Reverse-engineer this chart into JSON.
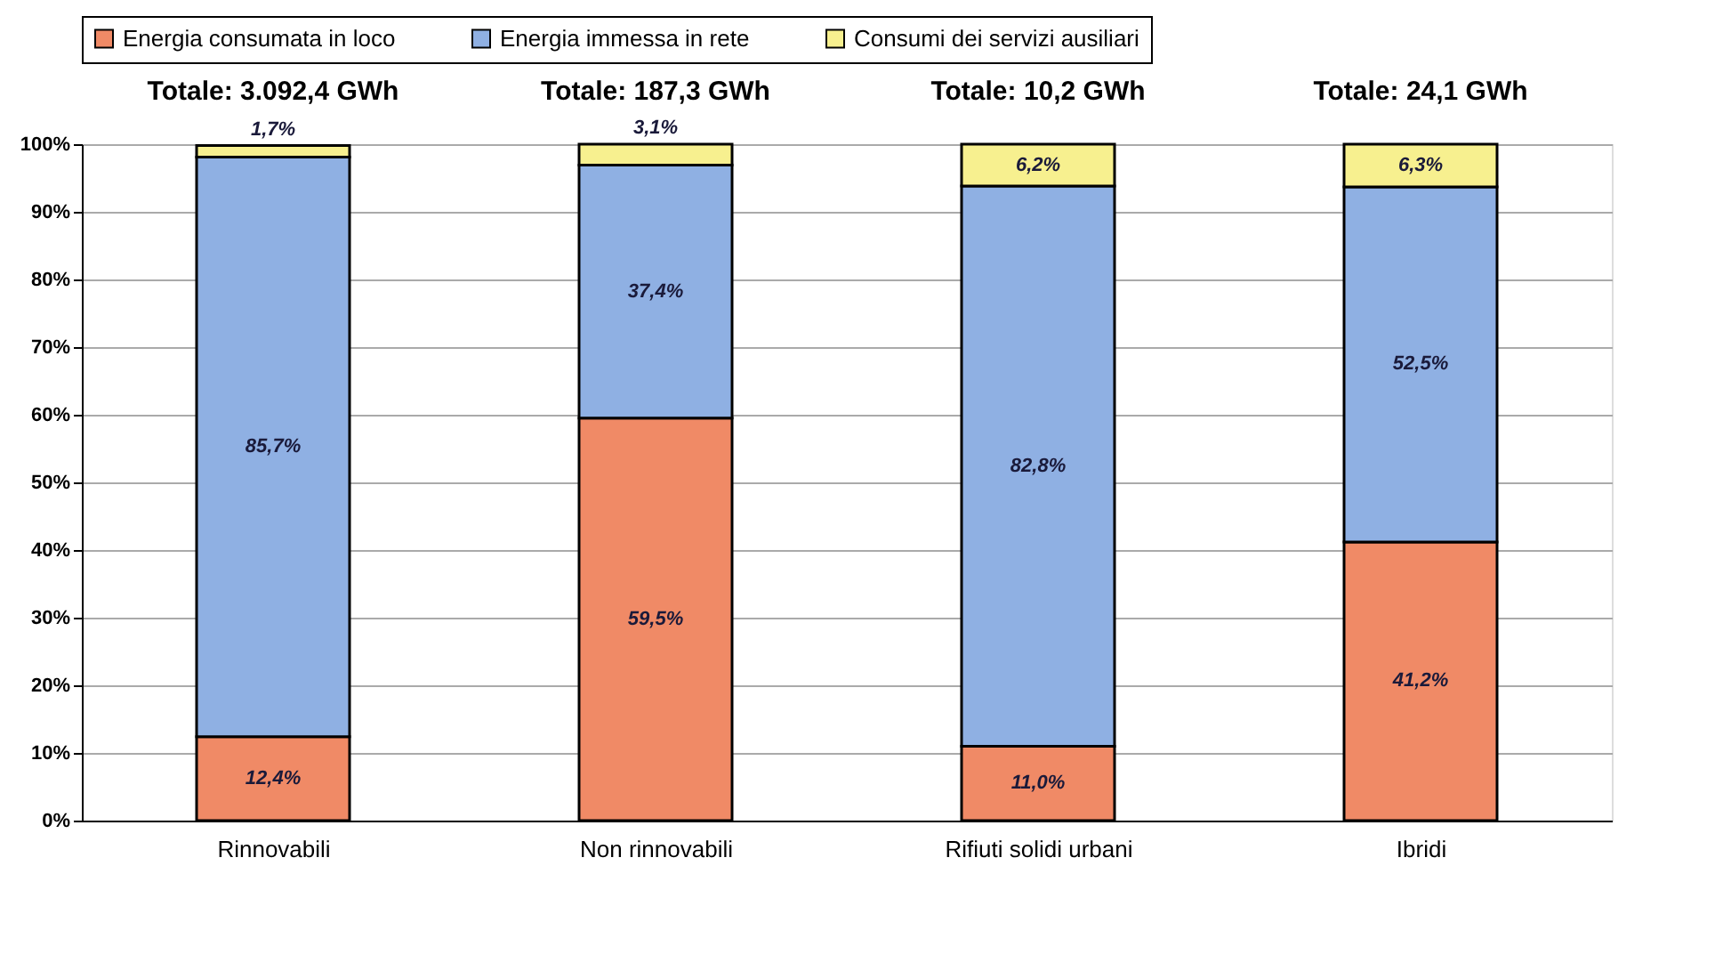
{
  "chart_data": {
    "type": "bar",
    "stacked": true,
    "categories": [
      "Rinnovabili",
      "Non rinnovabili",
      "Rifiuti solidi urbani",
      "Ibridi"
    ],
    "series": [
      {
        "name": "Energia consumata in loco",
        "color": "#f08a66",
        "values": [
          12.4,
          59.5,
          11.0,
          41.2
        ],
        "value_labels": [
          "12,4%",
          "59,5%",
          "11,0%",
          "41,2%"
        ]
      },
      {
        "name": "Energia immessa in rete",
        "color": "#8fb0e3",
        "values": [
          85.7,
          37.4,
          82.8,
          52.5
        ],
        "value_labels": [
          "85,7%",
          "37,4%",
          "82,8%",
          "52,5%"
        ]
      },
      {
        "name": "Consumi dei servizi ausiliari",
        "color": "#f7f08f",
        "values": [
          1.7,
          3.1,
          6.2,
          6.3
        ],
        "value_labels": [
          "1,7%",
          "3,1%",
          "6,2%",
          "6,3%"
        ]
      }
    ],
    "annotations": [
      {
        "text": "Totale: 3.092,4 GWh",
        "x": "Rinnovabili",
        "y": 100
      },
      {
        "text": "Totale: 187,3 GWh",
        "x": "Non rinnovabili",
        "y": 100
      },
      {
        "text": "Totale: 10,2 GWh",
        "x": "Rifiuti solidi urbani",
        "y": 100
      },
      {
        "text": "Totale: 24,1 GWh",
        "x": "Ibridi",
        "y": 100
      }
    ],
    "ylim": [
      0,
      100
    ],
    "yticks": [
      {
        "value": 0,
        "label": "0%"
      },
      {
        "value": 10,
        "label": "10%"
      },
      {
        "value": 20,
        "label": "20%"
      },
      {
        "value": 30,
        "label": "30%"
      },
      {
        "value": 40,
        "label": "40%"
      },
      {
        "value": 50,
        "label": "50%"
      },
      {
        "value": 60,
        "label": "60%"
      },
      {
        "value": 70,
        "label": "70%"
      },
      {
        "value": 80,
        "label": "80%"
      },
      {
        "value": 90,
        "label": "90%"
      },
      {
        "value": 100,
        "label": "100%"
      }
    ],
    "grid": "y",
    "legend": "top"
  }
}
